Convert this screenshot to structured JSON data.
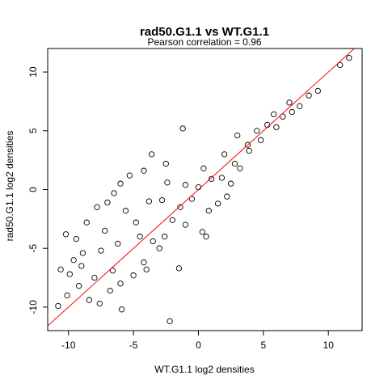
{
  "chart_data": {
    "type": "scatter",
    "title": "rad50.G1.1 vs WT.G1.1",
    "subtitle": "Pearson correlation =  0.96",
    "xlabel": "WT.G1.1 log2 densities",
    "ylabel": "rad50.G1.1 log2 densities",
    "xlim": [
      -11.6,
      12.6
    ],
    "ylim": [
      -12.0,
      12.0
    ],
    "x_ticks": [
      -10,
      -5,
      0,
      5,
      10
    ],
    "y_ticks": [
      -10,
      -5,
      0,
      5,
      10
    ],
    "x_tick_labels": [
      "-10",
      "-5",
      "0",
      "5",
      "10"
    ],
    "y_tick_labels": [
      "-10",
      "-5",
      "0",
      "5",
      "10"
    ],
    "grid": false,
    "marker": "open-circle",
    "point_color": "#000000",
    "fit_line": {
      "color": "#ff0000",
      "intercept": 0.0,
      "slope": 1.0
    },
    "points": [
      {
        "x": 11.6,
        "y": 11.2
      },
      {
        "x": 10.9,
        "y": 10.6
      },
      {
        "x": 9.2,
        "y": 8.4
      },
      {
        "x": 8.5,
        "y": 8.0
      },
      {
        "x": 7.8,
        "y": 7.1
      },
      {
        "x": 7.2,
        "y": 6.6
      },
      {
        "x": 6.5,
        "y": 6.2
      },
      {
        "x": 5.8,
        "y": 6.4
      },
      {
        "x": 5.3,
        "y": 5.5
      },
      {
        "x": 4.8,
        "y": 4.2
      },
      {
        "x": 3.9,
        "y": 3.3
      },
      {
        "x": -1.2,
        "y": 5.2
      },
      {
        "x": -3.6,
        "y": 3.0
      },
      {
        "x": -2.5,
        "y": 2.2
      },
      {
        "x": -4.2,
        "y": 1.6
      },
      {
        "x": -5.3,
        "y": 1.2
      },
      {
        "x": -6.0,
        "y": 0.5
      },
      {
        "x": -6.5,
        "y": -0.3
      },
      {
        "x": -7.0,
        "y": -1.1
      },
      {
        "x": -7.8,
        "y": -1.5
      },
      {
        "x": -8.6,
        "y": -2.8
      },
      {
        "x": -10.2,
        "y": -3.8
      },
      {
        "x": -9.4,
        "y": -4.2
      },
      {
        "x": -8.9,
        "y": -5.4
      },
      {
        "x": -9.6,
        "y": -6.0
      },
      {
        "x": -10.6,
        "y": -6.8
      },
      {
        "x": -9.9,
        "y": -7.2
      },
      {
        "x": -9.2,
        "y": -8.2
      },
      {
        "x": -10.8,
        "y": -9.9
      },
      {
        "x": -10.1,
        "y": -9.0
      },
      {
        "x": -8.4,
        "y": -9.4
      },
      {
        "x": -7.6,
        "y": -9.7
      },
      {
        "x": -5.9,
        "y": -10.2
      },
      {
        "x": -6.8,
        "y": -8.6
      },
      {
        "x": -2.2,
        "y": -11.2
      },
      {
        "x": -1.5,
        "y": -6.7
      },
      {
        "x": 0.3,
        "y": -3.6
      },
      {
        "x": 0.6,
        "y": -4.0
      },
      {
        "x": -3.0,
        "y": -5.0
      },
      {
        "x": -4.2,
        "y": -6.2
      },
      {
        "x": -2.0,
        "y": -2.6
      },
      {
        "x": 1.5,
        "y": -1.2
      },
      {
        "x": 2.5,
        "y": 0.5
      },
      {
        "x": 3.2,
        "y": 1.8
      },
      {
        "x": 2.0,
        "y": 3.0
      },
      {
        "x": 0.4,
        "y": 1.8
      },
      {
        "x": -1.0,
        "y": 0.4
      },
      {
        "x": -2.8,
        "y": -0.9
      },
      {
        "x": -4.8,
        "y": -2.8
      },
      {
        "x": -6.2,
        "y": -4.6
      },
      {
        "x": -7.5,
        "y": -5.2
      },
      {
        "x": -5.0,
        "y": -7.3
      },
      {
        "x": -3.5,
        "y": -4.4
      },
      {
        "x": -1.4,
        "y": -1.5
      },
      {
        "x": 1.0,
        "y": 0.9
      },
      {
        "x": 3.8,
        "y": 3.8
      },
      {
        "x": 6.0,
        "y": 5.3
      },
      {
        "x": 7.0,
        "y": 7.4
      },
      {
        "x": -8.0,
        "y": -7.5
      },
      {
        "x": -6.6,
        "y": -6.9
      },
      {
        "x": -4.5,
        "y": -4.0
      },
      {
        "x": -0.5,
        "y": -0.8
      },
      {
        "x": 2.8,
        "y": 2.2
      },
      {
        "x": 4.5,
        "y": 5.0
      },
      {
        "x": -9.0,
        "y": -6.5
      },
      {
        "x": -7.2,
        "y": -3.5
      },
      {
        "x": -5.6,
        "y": -1.8
      },
      {
        "x": -3.8,
        "y": -1.0
      },
      {
        "x": -2.4,
        "y": 0.6
      },
      {
        "x": 0.0,
        "y": 0.2
      },
      {
        "x": 1.8,
        "y": 1.0
      },
      {
        "x": 3.0,
        "y": 4.6
      },
      {
        "x": -6.0,
        "y": -8.0
      },
      {
        "x": -4.0,
        "y": -6.8
      },
      {
        "x": -2.6,
        "y": -4.0
      },
      {
        "x": -1.0,
        "y": -3.0
      },
      {
        "x": 0.8,
        "y": -1.8
      },
      {
        "x": 2.2,
        "y": -0.6
      }
    ]
  }
}
